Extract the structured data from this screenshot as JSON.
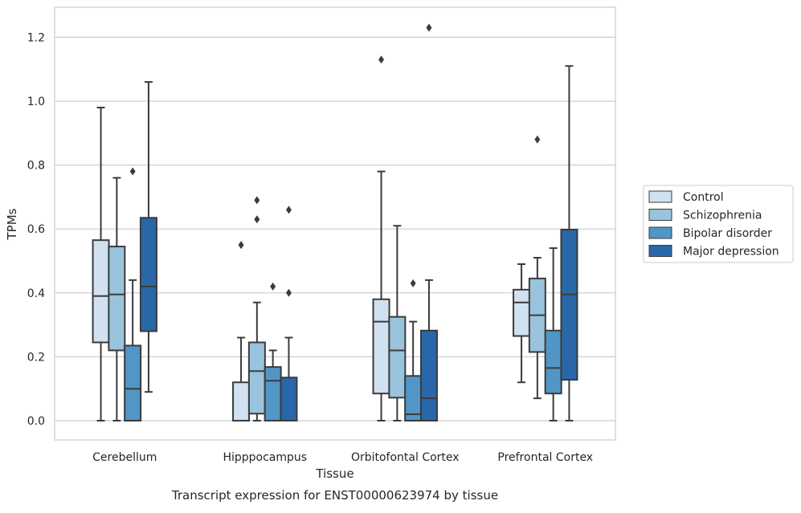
{
  "caption": "Transcript expression for ENST00000623974 by tissue",
  "chart_data": {
    "type": "boxplot",
    "title": "",
    "xlabel": "Tissue",
    "ylabel": "TPMs",
    "ylim": [
      -0.06,
      1.29
    ],
    "yticks": [
      0.0,
      0.2,
      0.4,
      0.6,
      0.8,
      1.0,
      1.2
    ],
    "ytick_labels": [
      "0.0",
      "0.2",
      "0.4",
      "0.6",
      "0.8",
      "1.0",
      "1.2"
    ],
    "grid": "horizontal",
    "legend_position": "right-outside",
    "categories": [
      "Cerebellum",
      "Hipppocampus",
      "Orbitofontal Cortex",
      "Prefrontal Cortex"
    ],
    "series": [
      {
        "name": "Control",
        "color": "#d1e1f0",
        "boxes": [
          {
            "whislo": 0.0,
            "q1": 0.245,
            "median": 0.39,
            "q3": 0.565,
            "whishi": 0.98,
            "fliers": []
          },
          {
            "whislo": 0.0,
            "q1": 0.0,
            "median": 0.0,
            "q3": 0.12,
            "whishi": 0.26,
            "fliers": [
              0.55
            ]
          },
          {
            "whislo": 0.0,
            "q1": 0.085,
            "median": 0.31,
            "q3": 0.38,
            "whishi": 0.78,
            "fliers": [
              1.13
            ]
          },
          {
            "whislo": 0.12,
            "q1": 0.265,
            "median": 0.37,
            "q3": 0.41,
            "whishi": 0.49,
            "fliers": []
          }
        ]
      },
      {
        "name": "Schizophrenia",
        "color": "#9ac3dd",
        "boxes": [
          {
            "whislo": 0.0,
            "q1": 0.22,
            "median": 0.395,
            "q3": 0.545,
            "whishi": 0.76,
            "fliers": []
          },
          {
            "whislo": 0.0,
            "q1": 0.022,
            "median": 0.155,
            "q3": 0.245,
            "whishi": 0.37,
            "fliers": [
              0.63,
              0.69
            ]
          },
          {
            "whislo": 0.0,
            "q1": 0.072,
            "median": 0.22,
            "q3": 0.325,
            "whishi": 0.61,
            "fliers": []
          },
          {
            "whislo": 0.07,
            "q1": 0.215,
            "median": 0.33,
            "q3": 0.445,
            "whishi": 0.51,
            "fliers": [
              0.88
            ]
          }
        ]
      },
      {
        "name": "Bipolar disorder",
        "color": "#5196c6",
        "boxes": [
          {
            "whislo": 0.0,
            "q1": 0.0,
            "median": 0.1,
            "q3": 0.235,
            "whishi": 0.44,
            "fliers": [
              0.78
            ]
          },
          {
            "whislo": 0.0,
            "q1": 0.0,
            "median": 0.125,
            "q3": 0.168,
            "whishi": 0.22,
            "fliers": [
              0.42
            ]
          },
          {
            "whislo": 0.0,
            "q1": 0.0,
            "median": 0.02,
            "q3": 0.14,
            "whishi": 0.31,
            "fliers": [
              0.43
            ]
          },
          {
            "whislo": 0.0,
            "q1": 0.085,
            "median": 0.165,
            "q3": 0.282,
            "whishi": 0.54,
            "fliers": []
          }
        ]
      },
      {
        "name": "Major depression",
        "color": "#2967a8",
        "boxes": [
          {
            "whislo": 0.09,
            "q1": 0.28,
            "median": 0.42,
            "q3": 0.635,
            "whishi": 1.06,
            "fliers": []
          },
          {
            "whislo": 0.0,
            "q1": 0.0,
            "median": 0.0,
            "q3": 0.135,
            "whishi": 0.26,
            "fliers": [
              0.4,
              0.66
            ]
          },
          {
            "whislo": 0.0,
            "q1": 0.0,
            "median": 0.07,
            "q3": 0.282,
            "whishi": 0.44,
            "fliers": [
              1.23
            ]
          },
          {
            "whislo": 0.0,
            "q1": 0.128,
            "median": 0.395,
            "q3": 0.598,
            "whishi": 1.11,
            "fliers": []
          }
        ]
      }
    ]
  }
}
